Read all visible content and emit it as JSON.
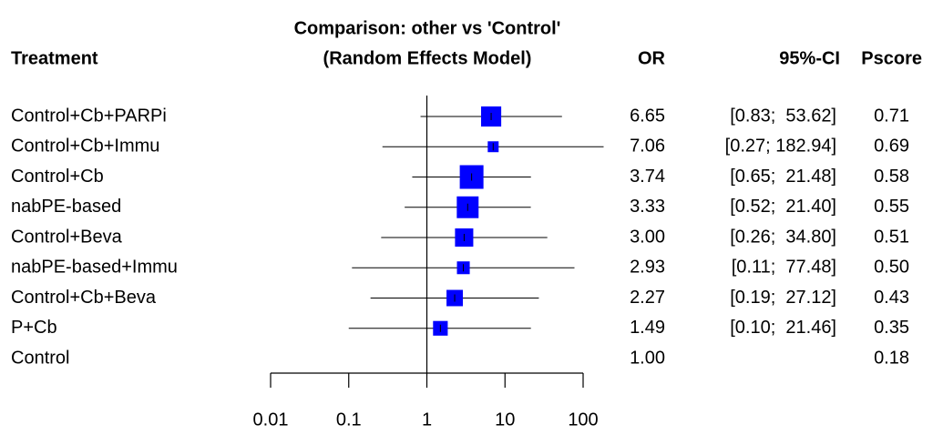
{
  "chart_data": {
    "type": "forest",
    "title": "Comparison: other vs 'Control'",
    "subtitle": "(Random Effects Model)",
    "headers": {
      "treatment": "Treatment",
      "or": "OR",
      "ci": "95%-CI",
      "pscore": "Pscore"
    },
    "categories": [
      "Control+Cb+PARPi",
      "Control+Cb+Immu",
      "Control+Cb",
      "nabPE-based",
      "Control+Beva",
      "nabPE-based+Immu",
      "Control+Cb+Beva",
      "P+Cb",
      "Control"
    ],
    "or": [
      6.65,
      7.06,
      3.74,
      3.33,
      3.0,
      2.93,
      2.27,
      1.49,
      1.0
    ],
    "or_labels": [
      "6.65",
      "7.06",
      "3.74",
      "3.33",
      "3.00",
      "2.93",
      "2.27",
      "1.49",
      "1.00"
    ],
    "lower": [
      0.83,
      0.27,
      0.65,
      0.52,
      0.26,
      0.11,
      0.19,
      0.1,
      null
    ],
    "upper": [
      53.62,
      182.94,
      21.48,
      21.4,
      34.8,
      77.48,
      27.12,
      21.46,
      null
    ],
    "ci_labels": [
      "[0.83;  53.62]",
      "[0.27; 182.94]",
      "[0.65;  21.48]",
      "[0.52;  21.40]",
      "[0.26;  34.80]",
      "[0.11;  77.48]",
      "[0.19;  27.12]",
      "[0.10;  21.46]",
      null
    ],
    "pscore": [
      0.71,
      0.69,
      0.58,
      0.55,
      0.51,
      0.5,
      0.43,
      0.35,
      0.18
    ],
    "pscore_labels": [
      "0.71",
      "0.69",
      "0.58",
      "0.55",
      "0.51",
      "0.50",
      "0.43",
      "0.35",
      "0.18"
    ],
    "weights": [
      0.85,
      0.46,
      1,
      0.92,
      0.77,
      0.54,
      0.69,
      0.62,
      null
    ],
    "color": "#0000ff",
    "reference": 1,
    "xlog": true,
    "xlim": [
      0.01,
      100
    ],
    "xticks": [
      0.01,
      0.1,
      1,
      10,
      100
    ]
  }
}
